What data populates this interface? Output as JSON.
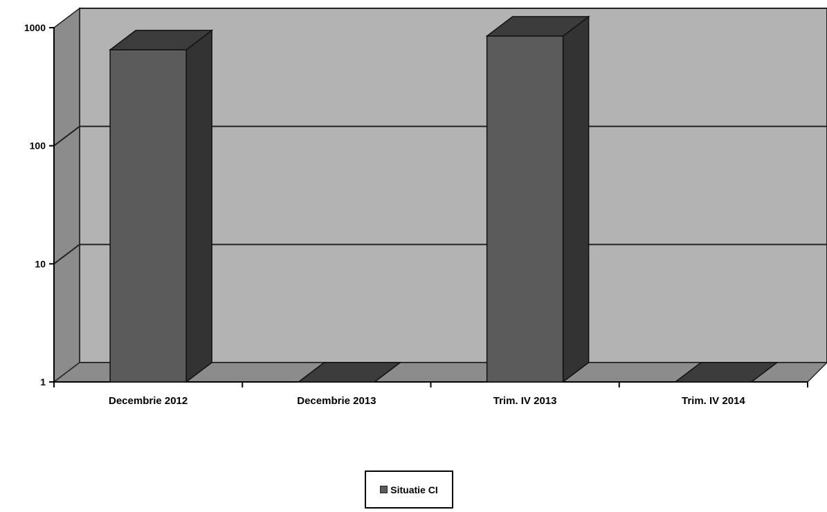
{
  "chart_data": {
    "type": "bar",
    "style": "3d-column",
    "y_scale": "log",
    "ylim": [
      1,
      1000
    ],
    "y_ticks": [
      "1",
      "10",
      "100",
      "1000"
    ],
    "categories": [
      "Decembrie 2012",
      "Decembrie 2013",
      "Trim. IV 2013",
      "Trim. IV 2014"
    ],
    "series": [
      {
        "name": "Situatie CI",
        "values": [
          650,
          1,
          850,
          1
        ]
      }
    ],
    "legend": "bottom-center",
    "grid": true,
    "colors": {
      "back_wall": "#b3b3b3",
      "side_wall": "#8c8c8c",
      "floor": "#8c8c8c",
      "bar_front": "#5b5b5b",
      "bar_top": "#3c3c3c",
      "bar_side": "#333333"
    }
  }
}
